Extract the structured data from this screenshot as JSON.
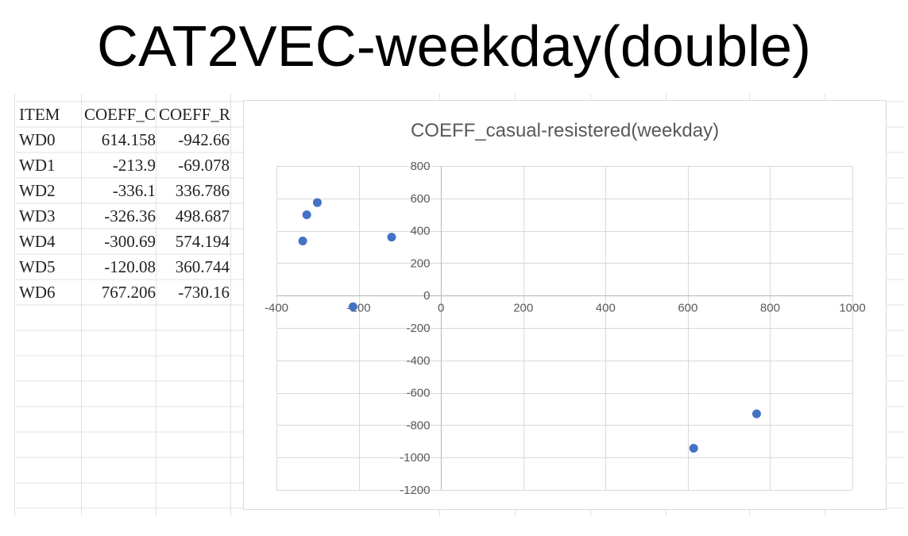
{
  "slide": {
    "title": "CAT2VEC-weekday(double)"
  },
  "table": {
    "headers": [
      "ITEM",
      "COEFF_C",
      "COEFF_R"
    ],
    "rows": [
      [
        "WD0",
        "614.158",
        "-942.66"
      ],
      [
        "WD1",
        "-213.9",
        "-69.078"
      ],
      [
        "WD2",
        "-336.1",
        "336.786"
      ],
      [
        "WD3",
        "-326.36",
        "498.687"
      ],
      [
        "WD4",
        "-300.69",
        "574.194"
      ],
      [
        "WD5",
        "-120.08",
        "360.744"
      ],
      [
        "WD6",
        "767.206",
        "-730.16"
      ]
    ]
  },
  "colors": {
    "marker": "#4472c4",
    "gridline": "#d9d9d9",
    "axis": "#bfbfbf",
    "text": "#595959"
  },
  "chart_data": {
    "type": "scatter",
    "title": "COEFF_casual-resistered(weekday)",
    "xlabel": "",
    "ylabel": "",
    "xlim": [
      -400,
      1000
    ],
    "ylim": [
      -1200,
      800
    ],
    "xticks": [
      -400,
      -200,
      0,
      200,
      400,
      600,
      800,
      1000
    ],
    "yticks": [
      800,
      600,
      400,
      200,
      0,
      -200,
      -400,
      -600,
      -800,
      -1000,
      -1200
    ],
    "grid": true,
    "legend": "none",
    "series": [
      {
        "x": [
          614.158,
          -213.9,
          -336.1,
          -326.36,
          -300.69,
          -120.08,
          767.206
        ],
        "y": [
          -942.66,
          -69.078,
          336.786,
          498.687,
          574.194,
          360.744,
          -730.16
        ]
      }
    ]
  }
}
